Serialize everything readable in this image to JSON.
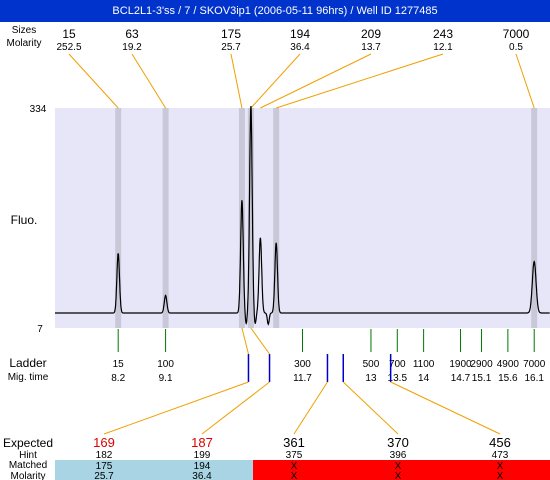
{
  "header": {
    "title": "BCL2L1-3'ss / 7 / SKOV3ip1 (2006-05-11 96hrs) / Well ID 1277485"
  },
  "colors": {
    "header_bg": "#0033cc",
    "plot_bg": "#e6e6f8",
    "peak_band": "#c8c8d8",
    "orange_line": "#f0a000",
    "ladder_tick": "#007700",
    "sample_marker": "#0000cc",
    "expected_red": "#dd0000",
    "matched_blue": "#a8d4e4",
    "unmatched_red": "#ff0000"
  },
  "labels": {
    "sizes_row": "Sizes",
    "molarity_row": "Molarity",
    "y_axis": "Fluo.",
    "ladder": "Ladder",
    "mig_time": "Mig. time",
    "expected": "Expected",
    "hint": "Hint",
    "matched": "Matched",
    "molarity_bottom": "Molarity"
  },
  "chart_data": {
    "type": "line",
    "ylabel": "Fluo.",
    "ylim": [
      7,
      334
    ],
    "y_ticks": [
      "334",
      "7"
    ],
    "x_range": [
      7.0,
      16.4
    ],
    "peaks": [
      {
        "size": "15",
        "molarity": "252.5",
        "time": 8.2,
        "height": 95,
        "band": true
      },
      {
        "size": "63",
        "molarity": "19.2",
        "time": 9.1,
        "height": 28,
        "band": true
      },
      {
        "size": "175",
        "molarity": "25.7",
        "time": 10.55,
        "height": 180,
        "band": true
      },
      {
        "size": "194",
        "molarity": "36.4",
        "time": 10.72,
        "height": 330,
        "band": true
      },
      {
        "size": "209",
        "molarity": "13.7",
        "time": 10.9,
        "height": 120,
        "band": false
      },
      {
        "size": "243",
        "molarity": "12.1",
        "time": 11.2,
        "height": 112,
        "band": true
      },
      {
        "size": "7000",
        "molarity": "0.5",
        "time": 16.1,
        "height": 82,
        "band": true
      }
    ],
    "ladder": [
      {
        "size": "15",
        "time": "8.2",
        "t": 8.2
      },
      {
        "size": "100",
        "time": "9.1",
        "t": 9.1
      },
      {
        "size": "300",
        "time": "11.7",
        "t": 11.7
      },
      {
        "size": "500",
        "time": "13",
        "t": 13.0
      },
      {
        "size": "700",
        "time": "13.5",
        "t": 13.5
      },
      {
        "size": "1100",
        "time": "14",
        "t": 14.0
      },
      {
        "size": "1900",
        "time": "14.7",
        "t": 14.7
      },
      {
        "size": "2900",
        "time": "15.1",
        "t": 15.1
      },
      {
        "size": "4900",
        "time": "15.6",
        "t": 15.6
      },
      {
        "size": "7000",
        "time": "16.1",
        "t": 16.1
      }
    ],
    "expected": [
      {
        "expected": "169",
        "hint": "182",
        "matched": "175",
        "molarity": "25.7",
        "is_match": true,
        "marker_t": 10.75
      },
      {
        "expected": "187",
        "hint": "199",
        "matched": "194",
        "molarity": "36.4",
        "is_match": true,
        "marker_t": 11.15
      },
      {
        "expected": "361",
        "hint": "375",
        "matched": "X",
        "molarity": "X",
        "is_match": false,
        "marker_t": 12.25
      },
      {
        "expected": "370",
        "hint": "396",
        "matched": "X",
        "molarity": "X",
        "is_match": false,
        "marker_t": 12.55
      },
      {
        "expected": "456",
        "hint": "473",
        "matched": "X",
        "molarity": "X",
        "is_match": false,
        "marker_t": 13.45
      }
    ]
  }
}
